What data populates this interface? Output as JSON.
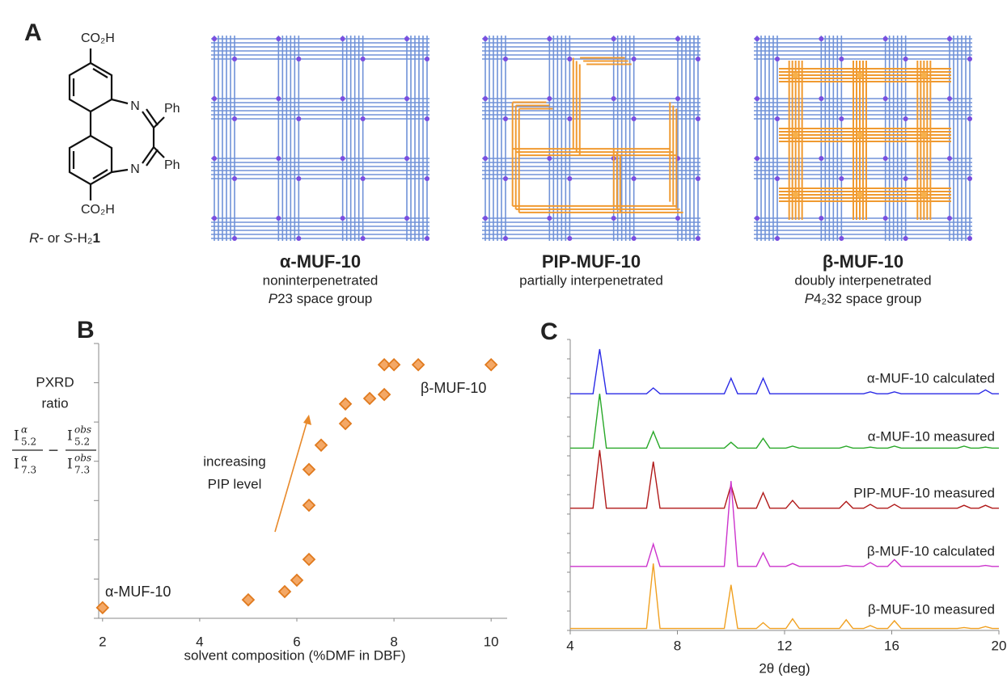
{
  "panel_labels": [
    "A",
    "B",
    "C"
  ],
  "ligand": {
    "top_group": "CO₂H",
    "bottom_group": "CO₂H",
    "nitrogen": "N",
    "substituent": "Ph",
    "caption": {
      "r": "R",
      "or": "- or ",
      "s": "S",
      "formula": "-H₂",
      "number": "1"
    }
  },
  "frameworks": [
    {
      "name": "α-MUF-10",
      "description": "noninterpenetrated",
      "space_group": {
        "symbol": "P",
        "rest": "23 space group"
      }
    },
    {
      "name": "PIP-MUF-10",
      "description": "partially interpenetrated"
    },
    {
      "name": "β-MUF-10",
      "description": "doubly interpenetrated",
      "space_group": {
        "symbol": "P",
        "rest": "4₂32 space group"
      }
    }
  ],
  "chart_data": [
    {
      "type": "scatter",
      "x": [
        2,
        5,
        5.75,
        6,
        6.25,
        6.25,
        6.25,
        6.5,
        7,
        7,
        7.5,
        7.8,
        7.8,
        8,
        8.5,
        10
      ],
      "values": [
        0.27,
        0.47,
        0.68,
        0.97,
        1.5,
        2.88,
        3.79,
        4.41,
        4.96,
        5.46,
        5.6,
        5.7,
        6.46,
        6.46,
        6.46,
        6.46
      ],
      "color": "#f4a866",
      "edge_color": "#e07a1e",
      "x_label": "solvent composition (%DMF in DBF)",
      "y_label": [
        "PXRD",
        "ratio"
      ],
      "y_formula": {
        "symbol": "I",
        "reference": "α",
        "observed": "obs",
        "peak_a": "5.2",
        "peak_b": "7.3",
        "operator": "−"
      },
      "annotations": [
        "α-MUF-10",
        "β-MUF-10",
        "increasing",
        "PIP level"
      ],
      "xlim": [
        1.92,
        10.33
      ],
      "ylim": [
        0,
        7
      ],
      "xticks": [
        2,
        4,
        6,
        8,
        10
      ],
      "yticks": [
        0,
        1,
        2,
        3,
        4,
        5,
        6,
        7
      ]
    },
    {
      "type": "line",
      "x": [
        4,
        4.85,
        5.1,
        5.35,
        6.85,
        7.1,
        7.35,
        9.75,
        10.0,
        10.25,
        10.95,
        11.2,
        11.45,
        12.05,
        12.3,
        12.55,
        14.05,
        14.3,
        14.55,
        14.95,
        15.2,
        15.45,
        15.85,
        16.1,
        16.35,
        18.45,
        18.7,
        18.95,
        19.25,
        19.5,
        19.75,
        20
      ],
      "series": [
        {
          "name": "α-MUF-10 calculated",
          "color": "#2a2ae6",
          "values": [
            12.2,
            12.2,
            14.5,
            12.2,
            12.2,
            12.5,
            12.2,
            12.2,
            13.0,
            12.2,
            12.2,
            13.0,
            12.2,
            12.2,
            12.2,
            12.2,
            12.2,
            12.2,
            12.2,
            12.2,
            12.3,
            12.2,
            12.2,
            12.3,
            12.2,
            12.2,
            12.2,
            12.2,
            12.2,
            12.4,
            12.2,
            12.2
          ]
        },
        {
          "name": "α-MUF-10 measured",
          "color": "#28a828",
          "values": [
            9.4,
            9.4,
            12.2,
            9.4,
            9.4,
            10.25,
            9.4,
            9.4,
            9.7,
            9.4,
            9.4,
            9.9,
            9.4,
            9.4,
            9.5,
            9.4,
            9.4,
            9.5,
            9.4,
            9.4,
            9.45,
            9.4,
            9.4,
            9.5,
            9.4,
            9.4,
            9.5,
            9.4,
            9.4,
            9.45,
            9.4,
            9.4
          ]
        },
        {
          "name": "PIP-MUF-10 measured",
          "color": "#b01818",
          "values": [
            6.3,
            6.3,
            9.3,
            6.3,
            6.3,
            8.7,
            6.3,
            6.3,
            7.5,
            6.3,
            6.3,
            7.1,
            6.3,
            6.3,
            6.7,
            6.3,
            6.3,
            6.65,
            6.3,
            6.3,
            6.5,
            6.3,
            6.3,
            6.5,
            6.3,
            6.3,
            6.45,
            6.3,
            6.3,
            6.45,
            6.3,
            6.3
          ]
        },
        {
          "name": "β-MUF-10 calculated",
          "color": "#cc33cc",
          "values": [
            3.3,
            3.3,
            3.3,
            3.3,
            3.3,
            4.45,
            3.3,
            3.3,
            7.7,
            3.3,
            3.3,
            4.0,
            3.3,
            3.3,
            3.45,
            3.3,
            3.3,
            3.35,
            3.3,
            3.3,
            3.5,
            3.3,
            3.3,
            3.65,
            3.3,
            3.3,
            3.3,
            3.3,
            3.3,
            3.35,
            3.3,
            3.3
          ]
        },
        {
          "name": "β-MUF-10 measured",
          "color": "#f0a020",
          "values": [
            0.1,
            0.1,
            0.1,
            0.1,
            0.1,
            3.45,
            0.1,
            0.1,
            2.35,
            0.1,
            0.1,
            0.4,
            0.1,
            0.1,
            0.6,
            0.1,
            0.1,
            0.55,
            0.1,
            0.1,
            0.25,
            0.1,
            0.1,
            0.5,
            0.1,
            0.1,
            0.15,
            0.1,
            0.1,
            0.2,
            0.1,
            0.1
          ]
        }
      ],
      "x_label": "2θ (deg)",
      "xlim": [
        4,
        20
      ],
      "ylim": [
        0,
        15
      ],
      "xticks": [
        4,
        8,
        12,
        16,
        20
      ],
      "yticks": [
        0,
        1,
        2,
        3,
        4,
        5,
        6,
        7,
        8,
        9,
        10,
        11,
        12,
        13,
        14,
        15
      ]
    }
  ]
}
